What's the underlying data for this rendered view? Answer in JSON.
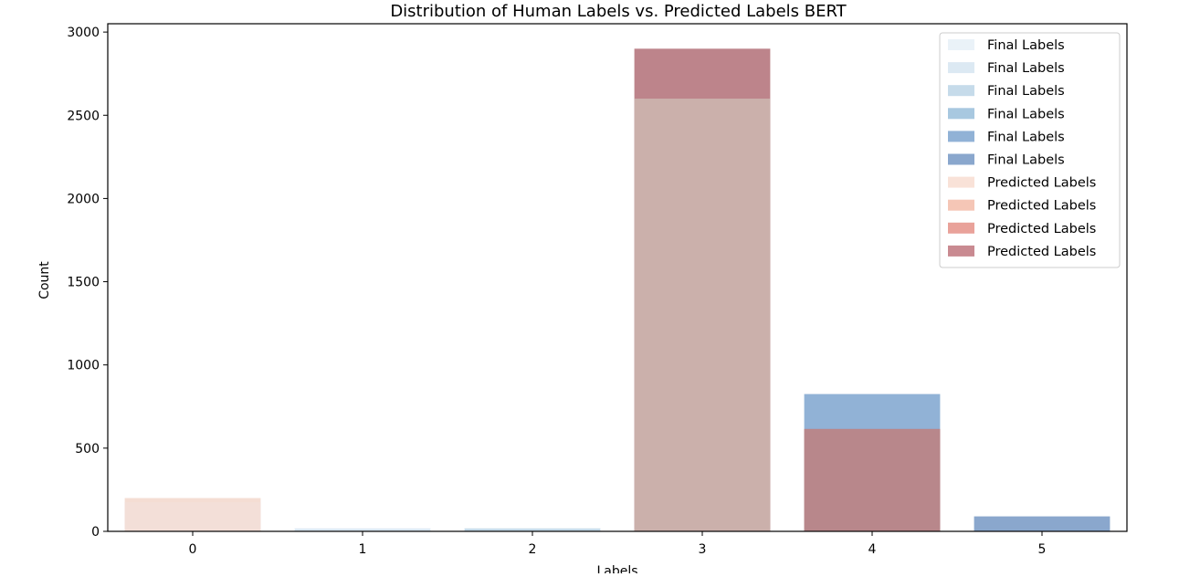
{
  "chart_data": {
    "type": "bar",
    "title": "Distribution of Human Labels vs. Predicted Labels BERT",
    "xlabel": "Labels",
    "ylabel": "Count",
    "categories": [
      "0",
      "1",
      "2",
      "3",
      "4",
      "5"
    ],
    "ylim": [
      0,
      3050
    ],
    "yticks": [
      0,
      500,
      1000,
      1500,
      2000,
      2500,
      3000
    ],
    "grid": false,
    "legend_position": "top-right",
    "series": [
      {
        "name": "Final Labels",
        "values": [
          175,
          18,
          18,
          2600,
          825,
          90
        ],
        "colors": [
          "#eaf2f8",
          "#dce9f3",
          "#c6dbea",
          "#a8c8e0",
          "#91b2d6",
          "#8aa7cd"
        ]
      },
      {
        "name": "Predicted Labels",
        "values": [
          200,
          0,
          0,
          2900,
          615,
          0
        ],
        "colors": [
          "#f4ddd3",
          "#f5c6b6",
          "#e9a29a",
          "#bd848b",
          "#bd848b",
          "#bd848b"
        ]
      }
    ],
    "legend": [
      {
        "label": "Final Labels",
        "color": "#eaf2f8"
      },
      {
        "label": "Final Labels",
        "color": "#dce9f3"
      },
      {
        "label": "Final Labels",
        "color": "#c6dbea"
      },
      {
        "label": "Final Labels",
        "color": "#a8c8e0"
      },
      {
        "label": "Final Labels",
        "color": "#91b2d6"
      },
      {
        "label": "Final Labels",
        "color": "#8aa7cd"
      },
      {
        "label": "Predicted Labels",
        "color": "#f9e2d8"
      },
      {
        "label": "Predicted Labels",
        "color": "#f5c6b6"
      },
      {
        "label": "Predicted Labels",
        "color": "#e9a29a"
      },
      {
        "label": "Predicted Labels",
        "color": "#c98a91"
      }
    ],
    "overlap_colors": [
      "#f3dfd8",
      "#dfe9ee",
      "#d8e7ec",
      "#cbb0ab",
      "#b8878b",
      "#8aa7cd"
    ]
  }
}
